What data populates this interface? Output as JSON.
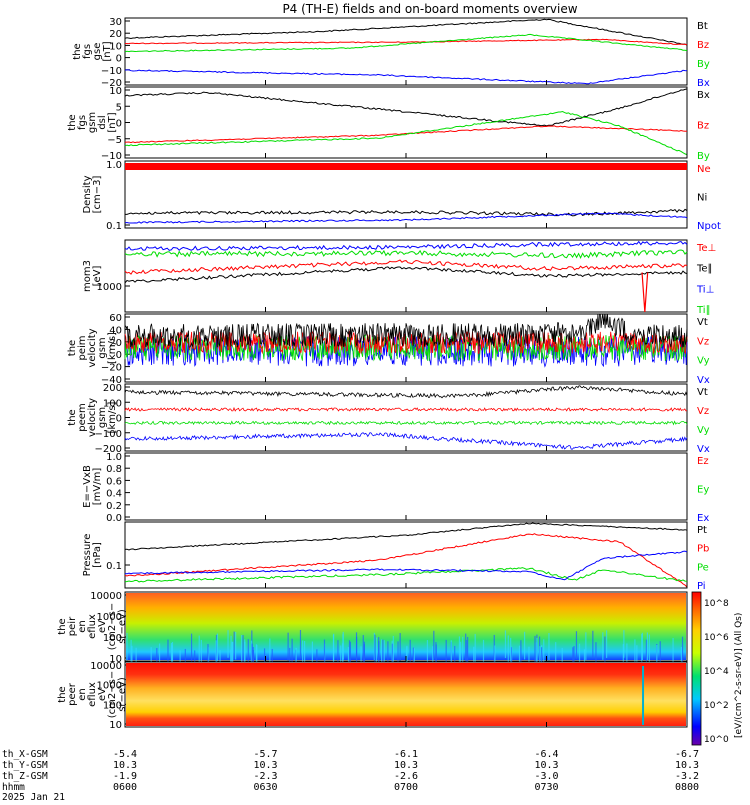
{
  "title": "P4 (TH-E) fields and on-board moments overview",
  "date_label": "2025 Jan 21",
  "colorbar_label": "[eV/(cm^2-s-sr-eV)] (All Qs)",
  "colorbar_ticks": [
    "10^8",
    "10^6",
    "10^4",
    "10^2",
    "10^0"
  ],
  "time_axis": {
    "row_labels": [
      "th_X-GSM",
      "th_Y-GSM",
      "th_Z-GSM",
      "hhmm"
    ],
    "columns": [
      {
        "x": "-5.4",
        "y": "10.3",
        "z": "-1.9",
        "t": "0600"
      },
      {
        "x": "-5.7",
        "y": "10.3",
        "z": "-2.3",
        "t": "0630"
      },
      {
        "x": "-6.1",
        "y": "10.3",
        "z": "-2.6",
        "t": "0700"
      },
      {
        "x": "-6.4",
        "y": "10.3",
        "z": "-3.0",
        "t": "0730"
      },
      {
        "x": "-6.7",
        "y": "10.3",
        "z": "-3.2",
        "t": "0800"
      }
    ]
  },
  "colors": {
    "black": "#000000",
    "red": "#ff0000",
    "green": "#00dd00",
    "blue": "#0000ff"
  },
  "chart_data": [
    {
      "type": "line",
      "ylabel": [
        "the",
        "fgs",
        "gse",
        "[nT]"
      ],
      "ticks": [
        "30",
        "20",
        "10",
        "0",
        "−10",
        "−20"
      ],
      "legend": [
        {
          "name": "Bt",
          "color": "#000000"
        },
        {
          "name": "Bz",
          "color": "#ff0000"
        },
        {
          "name": "By",
          "color": "#00dd00"
        },
        {
          "name": "Bx",
          "color": "#0000ff"
        }
      ]
    },
    {
      "type": "line",
      "ylabel": [
        "the",
        "fgs",
        "gsm",
        "dsl",
        "[nT]"
      ],
      "ticks": [
        "10",
        "5",
        "0",
        "−5",
        "−10"
      ],
      "legend": [
        {
          "name": "Bx",
          "color": "#000000"
        },
        {
          "name": "Bz",
          "color": "#ff0000"
        },
        {
          "name": "By",
          "color": "#00dd00"
        }
      ]
    },
    {
      "type": "line",
      "ylabel": [
        "Density",
        "[cm−3]"
      ],
      "ticks": [
        "1.0",
        "0.1"
      ],
      "legend": [
        {
          "name": "Ne",
          "color": "#ff0000"
        },
        {
          "name": "Ni",
          "color": "#000000"
        },
        {
          "name": "Npot",
          "color": "#0000ff"
        }
      ]
    },
    {
      "type": "line",
      "ylabel": [
        "mom3",
        "[eV]"
      ],
      "ticks": [
        "1000"
      ],
      "legend": [
        {
          "name": "Te⊥",
          "color": "#ff0000"
        },
        {
          "name": "Te∥",
          "color": "#000000"
        },
        {
          "name": "Ti⊥",
          "color": "#0000ff"
        },
        {
          "name": "Ti∥",
          "color": "#00dd00"
        }
      ]
    },
    {
      "type": "line",
      "ylabel": [
        "the",
        "peim",
        "velocity",
        "gsm",
        "[km/s]"
      ],
      "ticks": [
        "60",
        "40",
        "20",
        "0",
        "−20",
        "−40"
      ],
      "legend": [
        {
          "name": "Vt",
          "color": "#000000"
        },
        {
          "name": "Vz",
          "color": "#ff0000"
        },
        {
          "name": "Vy",
          "color": "#00dd00"
        },
        {
          "name": "Vx",
          "color": "#0000ff"
        }
      ]
    },
    {
      "type": "line",
      "ylabel": [
        "the",
        "peem",
        "velocity",
        "gsm",
        "[km/s]"
      ],
      "ticks": [
        "200",
        "100",
        "0",
        "−100",
        "−200"
      ],
      "legend": [
        {
          "name": "Vt",
          "color": "#000000"
        },
        {
          "name": "Vz",
          "color": "#ff0000"
        },
        {
          "name": "Vy",
          "color": "#00dd00"
        },
        {
          "name": "Vx",
          "color": "#0000ff"
        }
      ]
    },
    {
      "type": "line",
      "ylabel": [
        "E=−VxB",
        "[mV/m]"
      ],
      "ticks": [
        "1.0",
        "0.8",
        "0.6",
        "0.4",
        "0.2",
        "0.0"
      ],
      "legend": [
        {
          "name": "Ez",
          "color": "#ff0000"
        },
        {
          "name": "Ey",
          "color": "#00dd00"
        },
        {
          "name": "Ex",
          "color": "#0000ff"
        }
      ]
    },
    {
      "type": "line",
      "ylabel": [
        "Pressure",
        "[nPa]"
      ],
      "ticks": [
        "0.1"
      ],
      "legend": [
        {
          "name": "Pt",
          "color": "#000000"
        },
        {
          "name": "Pb",
          "color": "#ff0000"
        },
        {
          "name": "Pe",
          "color": "#00dd00"
        },
        {
          "name": "Pi",
          "color": "#0000ff"
        }
      ]
    },
    {
      "type": "heatmap",
      "ylabel": [
        "the",
        "peir",
        "en",
        "eflux",
        "eV",
        "(cm2−s−",
        "sr−eV)"
      ],
      "ticks": [
        "10000",
        "1000",
        "100",
        "10"
      ],
      "legend": []
    },
    {
      "type": "heatmap",
      "ylabel": [
        "the",
        "peer",
        "en",
        "eflux",
        "eV",
        "(cm2−s−",
        "sr−eV)"
      ],
      "ticks": [
        "10000",
        "1000",
        "100",
        "10"
      ],
      "legend": []
    }
  ]
}
